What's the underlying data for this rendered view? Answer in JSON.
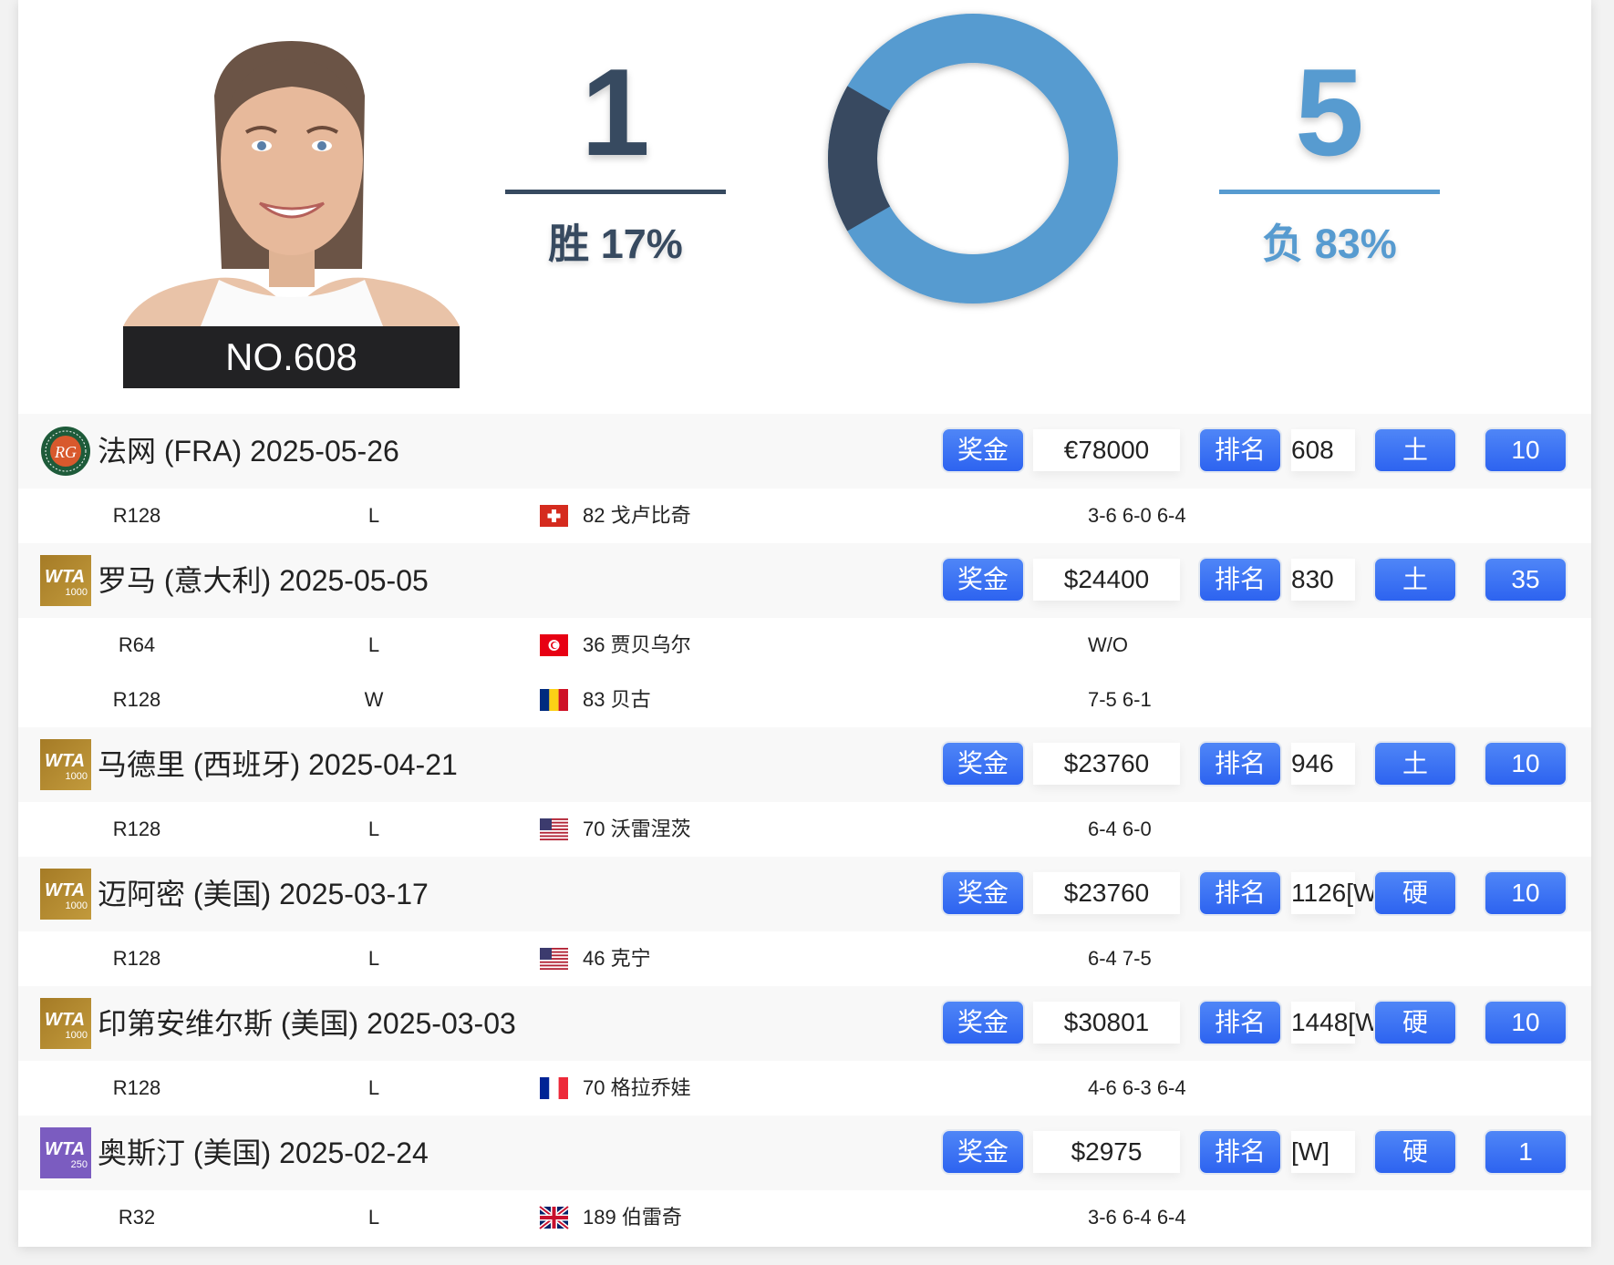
{
  "player": {
    "rank_label": "NO.608"
  },
  "record": {
    "wins": 1,
    "wins_label": "胜 17%",
    "losses": 5,
    "losses_label": "负 83%",
    "win_color": "#374a60",
    "loss_color": "#579bd0"
  },
  "labels": {
    "prize": "奖金",
    "rank": "排名"
  },
  "tournaments": [
    {
      "logo": "roland-garros",
      "title": "法网 (FRA) 2025-05-26",
      "prize": "€78000",
      "rank": "608",
      "surface": "土",
      "points": "10",
      "matches": [
        {
          "round": "R128",
          "result": "L",
          "flag": "switzerland",
          "opponent": "82 戈卢比奇",
          "score": "3-6 6-0 6-4"
        }
      ]
    },
    {
      "logo": "wta-1000",
      "title": "罗马 (意大利) 2025-05-05",
      "prize": "$24400",
      "rank": "830",
      "surface": "土",
      "points": "35",
      "matches": [
        {
          "round": "R64",
          "result": "L",
          "flag": "tunisia",
          "opponent": "36 贾贝乌尔",
          "score": "W/O"
        },
        {
          "round": "R128",
          "result": "W",
          "flag": "romania",
          "opponent": "83 贝古",
          "score": "7-5 6-1"
        }
      ]
    },
    {
      "logo": "wta-1000",
      "title": "马德里 (西班牙) 2025-04-21",
      "prize": "$23760",
      "rank": "946",
      "surface": "土",
      "points": "10",
      "matches": [
        {
          "round": "R128",
          "result": "L",
          "flag": "usa",
          "opponent": "70 沃雷涅茨",
          "score": "6-4 6-0"
        }
      ]
    },
    {
      "logo": "wta-1000",
      "title": "迈阿密 (美国) 2025-03-17",
      "prize": "$23760",
      "rank": "1126[W",
      "surface": "硬",
      "points": "10",
      "matches": [
        {
          "round": "R128",
          "result": "L",
          "flag": "usa",
          "opponent": "46 克宁",
          "score": "6-4 7-5"
        }
      ]
    },
    {
      "logo": "wta-1000",
      "title": "印第安维尔斯 (美国) 2025-03-03",
      "prize": "$30801",
      "rank": "1448[W",
      "surface": "硬",
      "points": "10",
      "matches": [
        {
          "round": "R128",
          "result": "L",
          "flag": "france",
          "opponent": "70 格拉乔娃",
          "score": "4-6 6-3 6-4"
        }
      ]
    },
    {
      "logo": "wta-250",
      "title": "奥斯汀 (美国) 2025-02-24",
      "prize": "$2975",
      "rank": "[W]",
      "surface": "硬",
      "points": "1",
      "matches": [
        {
          "round": "R32",
          "result": "L",
          "flag": "uk",
          "opponent": "189 伯雷奇",
          "score": "3-6 6-4 6-4"
        }
      ]
    }
  ]
}
